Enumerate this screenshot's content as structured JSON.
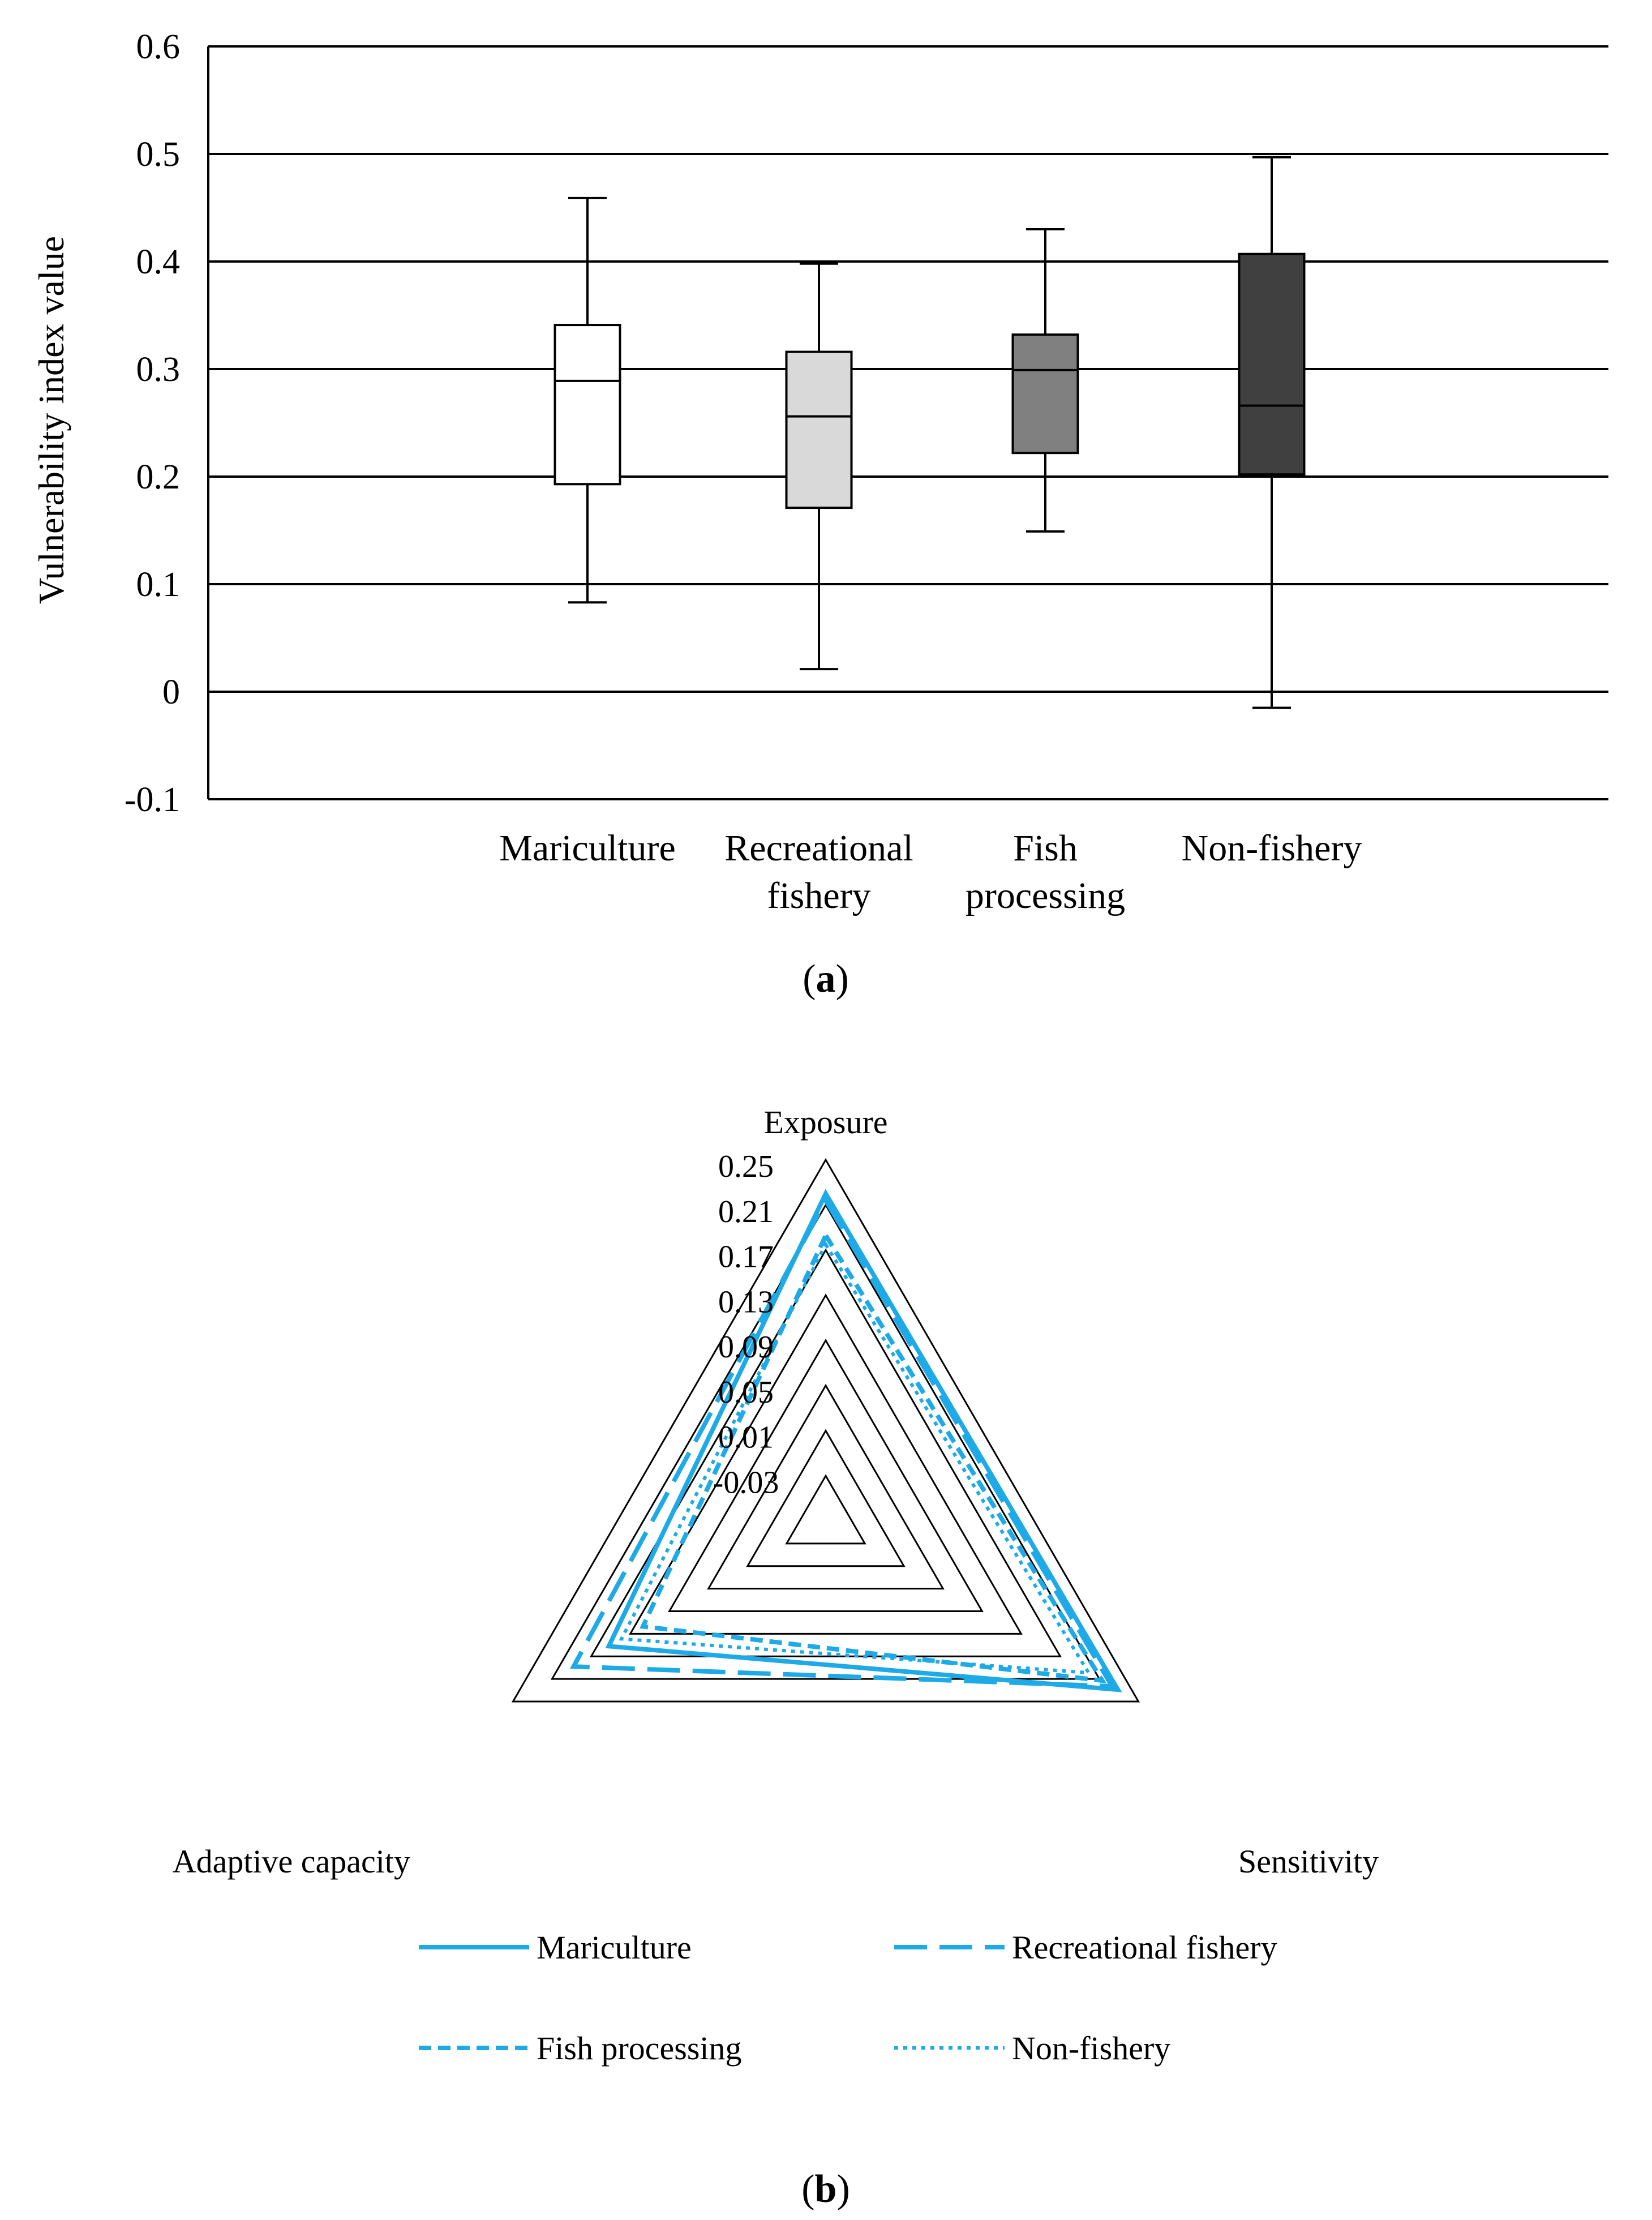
{
  "chart_data": [
    {
      "type": "boxplot",
      "panel_label": "a",
      "ylabel": "Vulnerability index value",
      "ylim": [
        -0.1,
        0.6
      ],
      "yticks": [
        "0.6",
        "0.5",
        "0.4",
        "0.3",
        "0.2",
        "0.1",
        "0",
        "-0.1"
      ],
      "ytick_values": [
        0.6,
        0.5,
        0.4,
        0.3,
        0.2,
        0.1,
        0,
        -0.1
      ],
      "grid": true,
      "boxes": [
        {
          "label_lines": [
            "Mariculture"
          ],
          "min": 0.083,
          "q1": 0.193,
          "median": 0.289,
          "q3": 0.341,
          "max": 0.459,
          "color": "#ffffff"
        },
        {
          "label_lines": [
            "Recreational",
            "fishery"
          ],
          "min": 0.021,
          "q1": 0.171,
          "median": 0.256,
          "q3": 0.316,
          "max": 0.398,
          "color": "#d9d9d9"
        },
        {
          "label_lines": [
            "Fish",
            "processing"
          ],
          "min": 0.149,
          "q1": 0.222,
          "median": 0.299,
          "q3": 0.332,
          "max": 0.43,
          "color": "#808080"
        },
        {
          "label_lines": [
            "Non-fishery"
          ],
          "min": -0.015,
          "q1": 0.202,
          "median": 0.266,
          "q3": 0.407,
          "max": 0.497,
          "color": "#404040"
        }
      ]
    },
    {
      "type": "radar",
      "panel_label": "b",
      "axes": [
        "Exposure",
        "Sensitivity",
        "Adaptive capacity"
      ],
      "rmin": -0.07,
      "rmax": 0.25,
      "ring_values": [
        -0.03,
        0.01,
        0.05,
        0.09,
        0.13,
        0.17,
        0.21,
        0.25
      ],
      "ring_labels": [
        "-0.03",
        "0.01",
        "0.05",
        "0.09",
        "0.13",
        "0.17",
        "0.21",
        "0.25"
      ],
      "series": [
        {
          "name": "Mariculture",
          "style": "solid",
          "values": [
            0.22,
            0.229,
            0.152
          ],
          "color": "#1EAAE6"
        },
        {
          "name": "Recreational fishery",
          "style": "longdash",
          "values": [
            0.214,
            0.223,
            0.188
          ],
          "color": "#1EAAE6"
        },
        {
          "name": "Fish processing",
          "style": "dash",
          "values": [
            0.183,
            0.213,
            0.117
          ],
          "color": "#1EAAE6"
        },
        {
          "name": "Non-fishery",
          "style": "dot",
          "values": [
            0.175,
            0.199,
            0.139
          ],
          "color": "#1EAAE6"
        }
      ]
    }
  ]
}
